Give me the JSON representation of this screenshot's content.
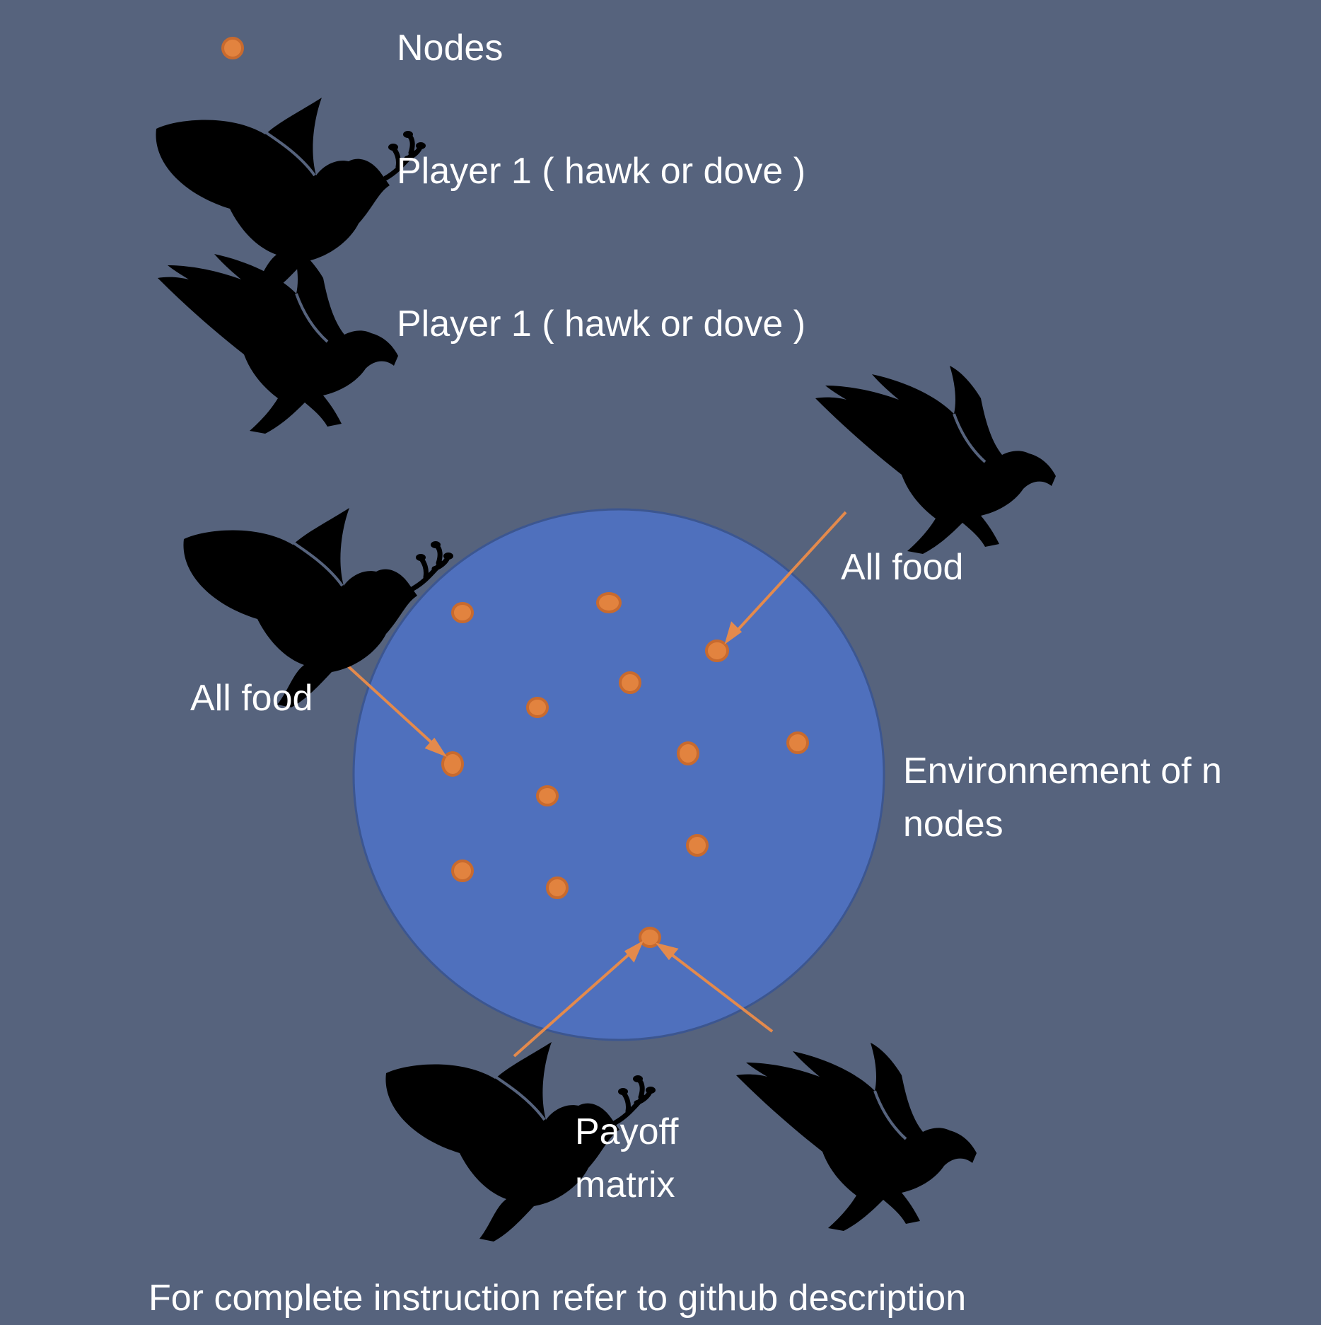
{
  "legend": {
    "nodes_label": "Nodes",
    "player_dove_label": "Player 1 ( hawk or dove )",
    "player_hawk_label": "Player 1 ( hawk or dove )"
  },
  "diagram": {
    "all_food_left": "All food",
    "all_food_right": "All food",
    "environment_line1": "Environnement of n",
    "environment_line2": "nodes",
    "payoff_line1": "Payoff",
    "payoff_line2": "matrix"
  },
  "footer": "For complete instruction refer to github description",
  "colors": {
    "background": "#56637d",
    "environment": "#4f70bd",
    "node": "#e2833f",
    "arrow": "#e48a4c",
    "bird": "#000000"
  },
  "icons": [
    "dove-icon",
    "hawk-icon",
    "node-dot"
  ]
}
